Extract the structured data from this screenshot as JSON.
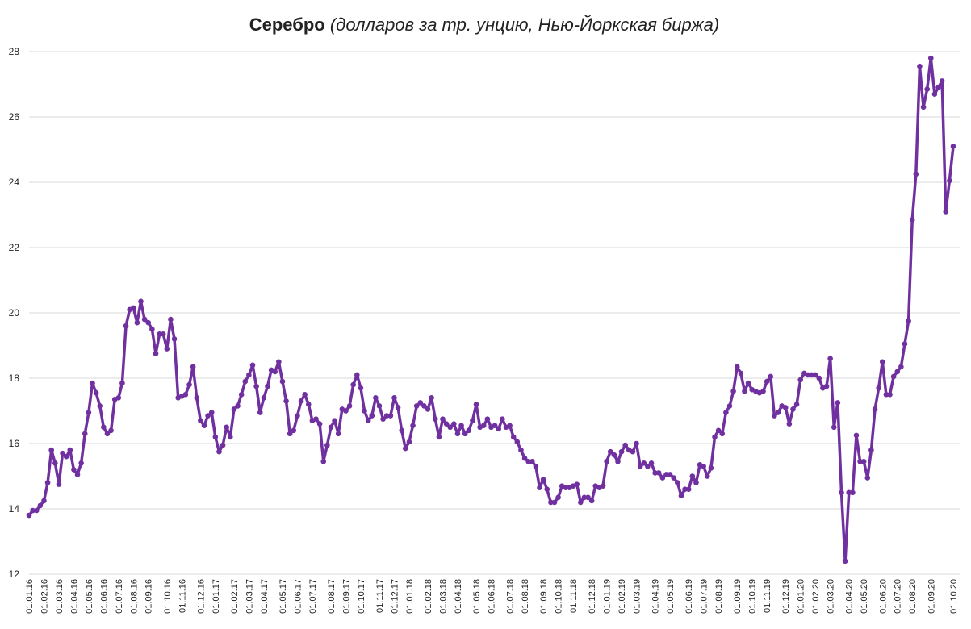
{
  "chart_data": {
    "type": "line",
    "title": "Серебро",
    "subtitle": "(долларов за тр. унцию, Нью-Йоркская биржа)",
    "categories": [
      "01.01.16",
      null,
      null,
      null,
      "01.02.16",
      null,
      null,
      null,
      "01.03.16",
      null,
      null,
      null,
      "01.04.16",
      null,
      null,
      null,
      "01.05.16",
      null,
      null,
      null,
      "01.06.16",
      null,
      null,
      null,
      "01.07.16",
      null,
      null,
      null,
      "01.08.16",
      null,
      null,
      null,
      "01.09.16",
      null,
      null,
      null,
      null,
      "01.10.16",
      null,
      null,
      null,
      "01.11.16",
      null,
      null,
      null,
      null,
      "01.12.16",
      null,
      null,
      null,
      "01.01.17",
      null,
      null,
      null,
      null,
      "01.02.17",
      null,
      null,
      null,
      "01.03.17",
      null,
      null,
      null,
      "01.04.17",
      null,
      null,
      null,
      null,
      "01.05.17",
      null,
      null,
      null,
      "01.06.17",
      null,
      null,
      null,
      "01.07.17",
      null,
      null,
      null,
      null,
      "01.08.17",
      null,
      null,
      null,
      "01.09.17",
      null,
      null,
      null,
      "01.10.17",
      null,
      null,
      null,
      null,
      "01.11.17",
      null,
      null,
      null,
      "01.12.17",
      null,
      null,
      null,
      "01.01.18",
      null,
      null,
      null,
      null,
      "01.02.18",
      null,
      null,
      null,
      "01.03.18",
      null,
      null,
      null,
      "01.04.18",
      null,
      null,
      null,
      null,
      "01.05.18",
      null,
      null,
      null,
      "01.06.18",
      null,
      null,
      null,
      null,
      "01.07.18",
      null,
      null,
      null,
      "01.08.18",
      null,
      null,
      null,
      null,
      "01.09.18",
      null,
      null,
      null,
      "01.10.18",
      null,
      null,
      null,
      "01.11.18",
      null,
      null,
      null,
      null,
      "01.12.18",
      null,
      null,
      null,
      "01.01.19",
      null,
      null,
      null,
      "01.02.19",
      null,
      null,
      null,
      "01.03.19",
      null,
      null,
      null,
      null,
      "01.04.19",
      null,
      null,
      null,
      "01.05.19",
      null,
      null,
      null,
      null,
      "01.06.19",
      null,
      null,
      null,
      "01.07.19",
      null,
      null,
      null,
      "01.08.19",
      null,
      null,
      null,
      null,
      "01.09.19",
      null,
      null,
      null,
      "01.10.19",
      null,
      null,
      null,
      "01.11.19",
      null,
      null,
      null,
      null,
      "01.12.19",
      null,
      null,
      null,
      "01.01.20",
      null,
      null,
      null,
      "01.02.20",
      null,
      null,
      null,
      "01.03.20",
      null,
      null,
      null,
      null,
      "01.04.20",
      null,
      null,
      null,
      "01.05.20",
      null,
      null,
      null,
      null,
      "01.06.20",
      null,
      null,
      null,
      "01.07.20",
      null,
      null,
      null,
      "01.08.20",
      null,
      null,
      null,
      null,
      "01.09.20",
      null,
      null,
      null,
      null,
      null,
      "01.10.20"
    ],
    "series": [
      {
        "color": "#7030a0",
        "values": [
          13.8,
          13.95,
          13.95,
          14.1,
          14.25,
          14.8,
          15.8,
          15.4,
          14.75,
          15.7,
          15.6,
          15.8,
          15.2,
          15.05,
          15.4,
          16.3,
          16.95,
          17.85,
          17.55,
          17.15,
          16.5,
          16.3,
          16.4,
          17.35,
          17.4,
          17.85,
          19.6,
          20.1,
          20.15,
          19.7,
          20.35,
          19.8,
          19.7,
          19.5,
          18.75,
          19.35,
          19.35,
          18.9,
          19.8,
          19.2,
          17.4,
          17.45,
          17.5,
          17.8,
          18.35,
          17.4,
          16.7,
          16.55,
          16.85,
          16.95,
          16.2,
          15.75,
          15.95,
          16.5,
          16.2,
          17.05,
          17.15,
          17.5,
          17.9,
          18.1,
          18.4,
          17.75,
          16.95,
          17.4,
          17.75,
          18.25,
          18.2,
          18.5,
          17.9,
          17.3,
          16.3,
          16.4,
          16.85,
          17.3,
          17.5,
          17.2,
          16.7,
          16.75,
          16.6,
          15.45,
          15.95,
          16.5,
          16.7,
          16.3,
          17.05,
          17.0,
          17.15,
          17.8,
          18.1,
          17.7,
          17.0,
          16.7,
          16.85,
          17.4,
          17.15,
          16.75,
          16.85,
          16.85,
          17.4,
          17.1,
          16.4,
          15.85,
          16.05,
          16.55,
          17.15,
          17.25,
          17.15,
          17.05,
          17.4,
          16.75,
          16.2,
          16.75,
          16.6,
          16.5,
          16.6,
          16.3,
          16.55,
          16.3,
          16.4,
          16.7,
          17.2,
          16.5,
          16.55,
          16.75,
          16.5,
          16.55,
          16.45,
          16.75,
          16.5,
          16.55,
          16.2,
          16.05,
          15.8,
          15.55,
          15.45,
          15.45,
          15.3,
          14.65,
          14.9,
          14.6,
          14.2,
          14.2,
          14.35,
          14.7,
          14.65,
          14.65,
          14.7,
          14.75,
          14.2,
          14.35,
          14.35,
          14.25,
          14.7,
          14.65,
          14.7,
          15.45,
          15.75,
          15.65,
          15.45,
          15.75,
          15.95,
          15.8,
          15.75,
          16.0,
          15.3,
          15.4,
          15.3,
          15.4,
          15.1,
          15.1,
          14.95,
          15.05,
          15.05,
          14.95,
          14.8,
          14.4,
          14.6,
          14.6,
          15.0,
          14.8,
          15.35,
          15.3,
          15.0,
          15.25,
          16.2,
          16.4,
          16.3,
          16.95,
          17.15,
          17.6,
          18.35,
          18.15,
          17.6,
          17.85,
          17.65,
          17.6,
          17.55,
          17.6,
          17.9,
          18.05,
          16.85,
          16.95,
          17.15,
          17.1,
          16.6,
          17.05,
          17.2,
          17.95,
          18.15,
          18.1,
          18.1,
          18.1,
          18.0,
          17.7,
          17.75,
          18.6,
          16.5,
          17.25,
          14.5,
          12.4,
          14.5,
          14.5,
          16.25,
          15.45,
          15.45,
          14.95,
          15.8,
          17.05,
          17.7,
          18.5,
          17.5,
          17.5,
          18.05,
          18.2,
          18.35,
          19.05,
          19.75,
          22.85,
          24.25,
          27.55,
          26.3,
          26.85,
          27.8,
          26.7,
          26.9,
          27.1,
          23.1,
          24.05,
          25.1
        ]
      }
    ],
    "ylim": [
      12,
      28
    ],
    "yticks": [
      12,
      14,
      16,
      18,
      20,
      22,
      24,
      26,
      28
    ],
    "grid": true
  }
}
